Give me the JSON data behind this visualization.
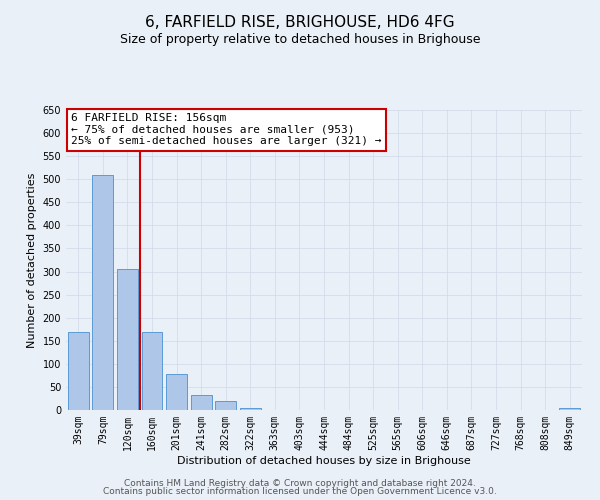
{
  "title": "6, FARFIELD RISE, BRIGHOUSE, HD6 4FG",
  "subtitle": "Size of property relative to detached houses in Brighouse",
  "xlabel": "Distribution of detached houses by size in Brighouse",
  "ylabel": "Number of detached properties",
  "bar_labels": [
    "39sqm",
    "79sqm",
    "120sqm",
    "160sqm",
    "201sqm",
    "241sqm",
    "282sqm",
    "322sqm",
    "363sqm",
    "403sqm",
    "444sqm",
    "484sqm",
    "525sqm",
    "565sqm",
    "606sqm",
    "646sqm",
    "687sqm",
    "727sqm",
    "768sqm",
    "808sqm",
    "849sqm"
  ],
  "bar_values": [
    170,
    510,
    305,
    170,
    78,
    33,
    20,
    5,
    1,
    0,
    0,
    0,
    0,
    0,
    0,
    0,
    0,
    0,
    0,
    0,
    5
  ],
  "bar_color": "#aec6e8",
  "bar_edge_color": "#5b9bd5",
  "vline_color": "#cc0000",
  "annotation_lines": [
    "6 FARFIELD RISE: 156sqm",
    "← 75% of detached houses are smaller (953)",
    "25% of semi-detached houses are larger (321) →"
  ],
  "annotation_box_color": "#ffffff",
  "annotation_box_edge_color": "#cc0000",
  "ylim": [
    0,
    650
  ],
  "yticks": [
    0,
    50,
    100,
    150,
    200,
    250,
    300,
    350,
    400,
    450,
    500,
    550,
    600,
    650
  ],
  "grid_color": "#d0d8e8",
  "bg_color": "#eaf0f8",
  "plot_bg_color": "#eaf0f8",
  "footer_lines": [
    "Contains HM Land Registry data © Crown copyright and database right 2024.",
    "Contains public sector information licensed under the Open Government Licence v3.0."
  ],
  "title_fontsize": 11,
  "subtitle_fontsize": 9,
  "annotation_fontsize": 8,
  "footer_fontsize": 6.5,
  "axis_label_fontsize": 8,
  "tick_fontsize": 7,
  "ytick_fontsize": 7
}
